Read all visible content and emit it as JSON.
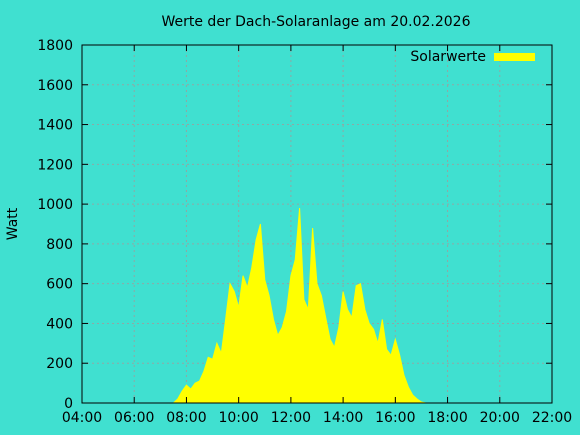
{
  "chart_data": {
    "type": "area",
    "title": "Werte der Dach-Solaranlage am 20.02.2026",
    "xlabel": "",
    "ylabel": "Watt",
    "xlim": [
      "04:00",
      "22:00"
    ],
    "ylim": [
      0,
      1800
    ],
    "xticks": [
      "04:00",
      "06:00",
      "08:00",
      "10:00",
      "12:00",
      "14:00",
      "16:00",
      "18:00",
      "20:00",
      "22:00"
    ],
    "yticks": [
      0,
      200,
      400,
      600,
      800,
      1000,
      1200,
      1400,
      1600,
      1800
    ],
    "grid": true,
    "legend_position": "top-right",
    "colors": {
      "background": "#40e0d0",
      "series": "#ffff00",
      "frame": "#000000"
    },
    "series": [
      {
        "name": "Solarwerte",
        "x": [
          "07:30",
          "07:40",
          "07:50",
          "08:00",
          "08:10",
          "08:20",
          "08:30",
          "08:40",
          "08:50",
          "09:00",
          "09:10",
          "09:20",
          "09:30",
          "09:40",
          "09:50",
          "10:00",
          "10:10",
          "10:20",
          "10:30",
          "10:40",
          "10:50",
          "11:00",
          "11:10",
          "11:20",
          "11:30",
          "11:40",
          "11:50",
          "12:00",
          "12:10",
          "12:20",
          "12:30",
          "12:40",
          "12:50",
          "13:00",
          "13:10",
          "13:20",
          "13:30",
          "13:40",
          "13:50",
          "14:00",
          "14:10",
          "14:20",
          "14:30",
          "14:40",
          "14:50",
          "15:00",
          "15:10",
          "15:20",
          "15:30",
          "15:40",
          "15:50",
          "16:00",
          "16:10",
          "16:20",
          "16:30",
          "16:40",
          "16:50",
          "17:00",
          "17:10",
          "17:20"
        ],
        "values": [
          0,
          20,
          60,
          90,
          70,
          100,
          110,
          160,
          230,
          220,
          300,
          250,
          420,
          600,
          560,
          480,
          640,
          580,
          680,
          820,
          900,
          620,
          540,
          420,
          340,
          380,
          460,
          640,
          720,
          980,
          520,
          470,
          880,
          600,
          540,
          430,
          320,
          280,
          380,
          560,
          470,
          430,
          590,
          600,
          470,
          400,
          370,
          300,
          420,
          270,
          240,
          320,
          240,
          140,
          80,
          40,
          20,
          5,
          0,
          0
        ]
      }
    ]
  }
}
